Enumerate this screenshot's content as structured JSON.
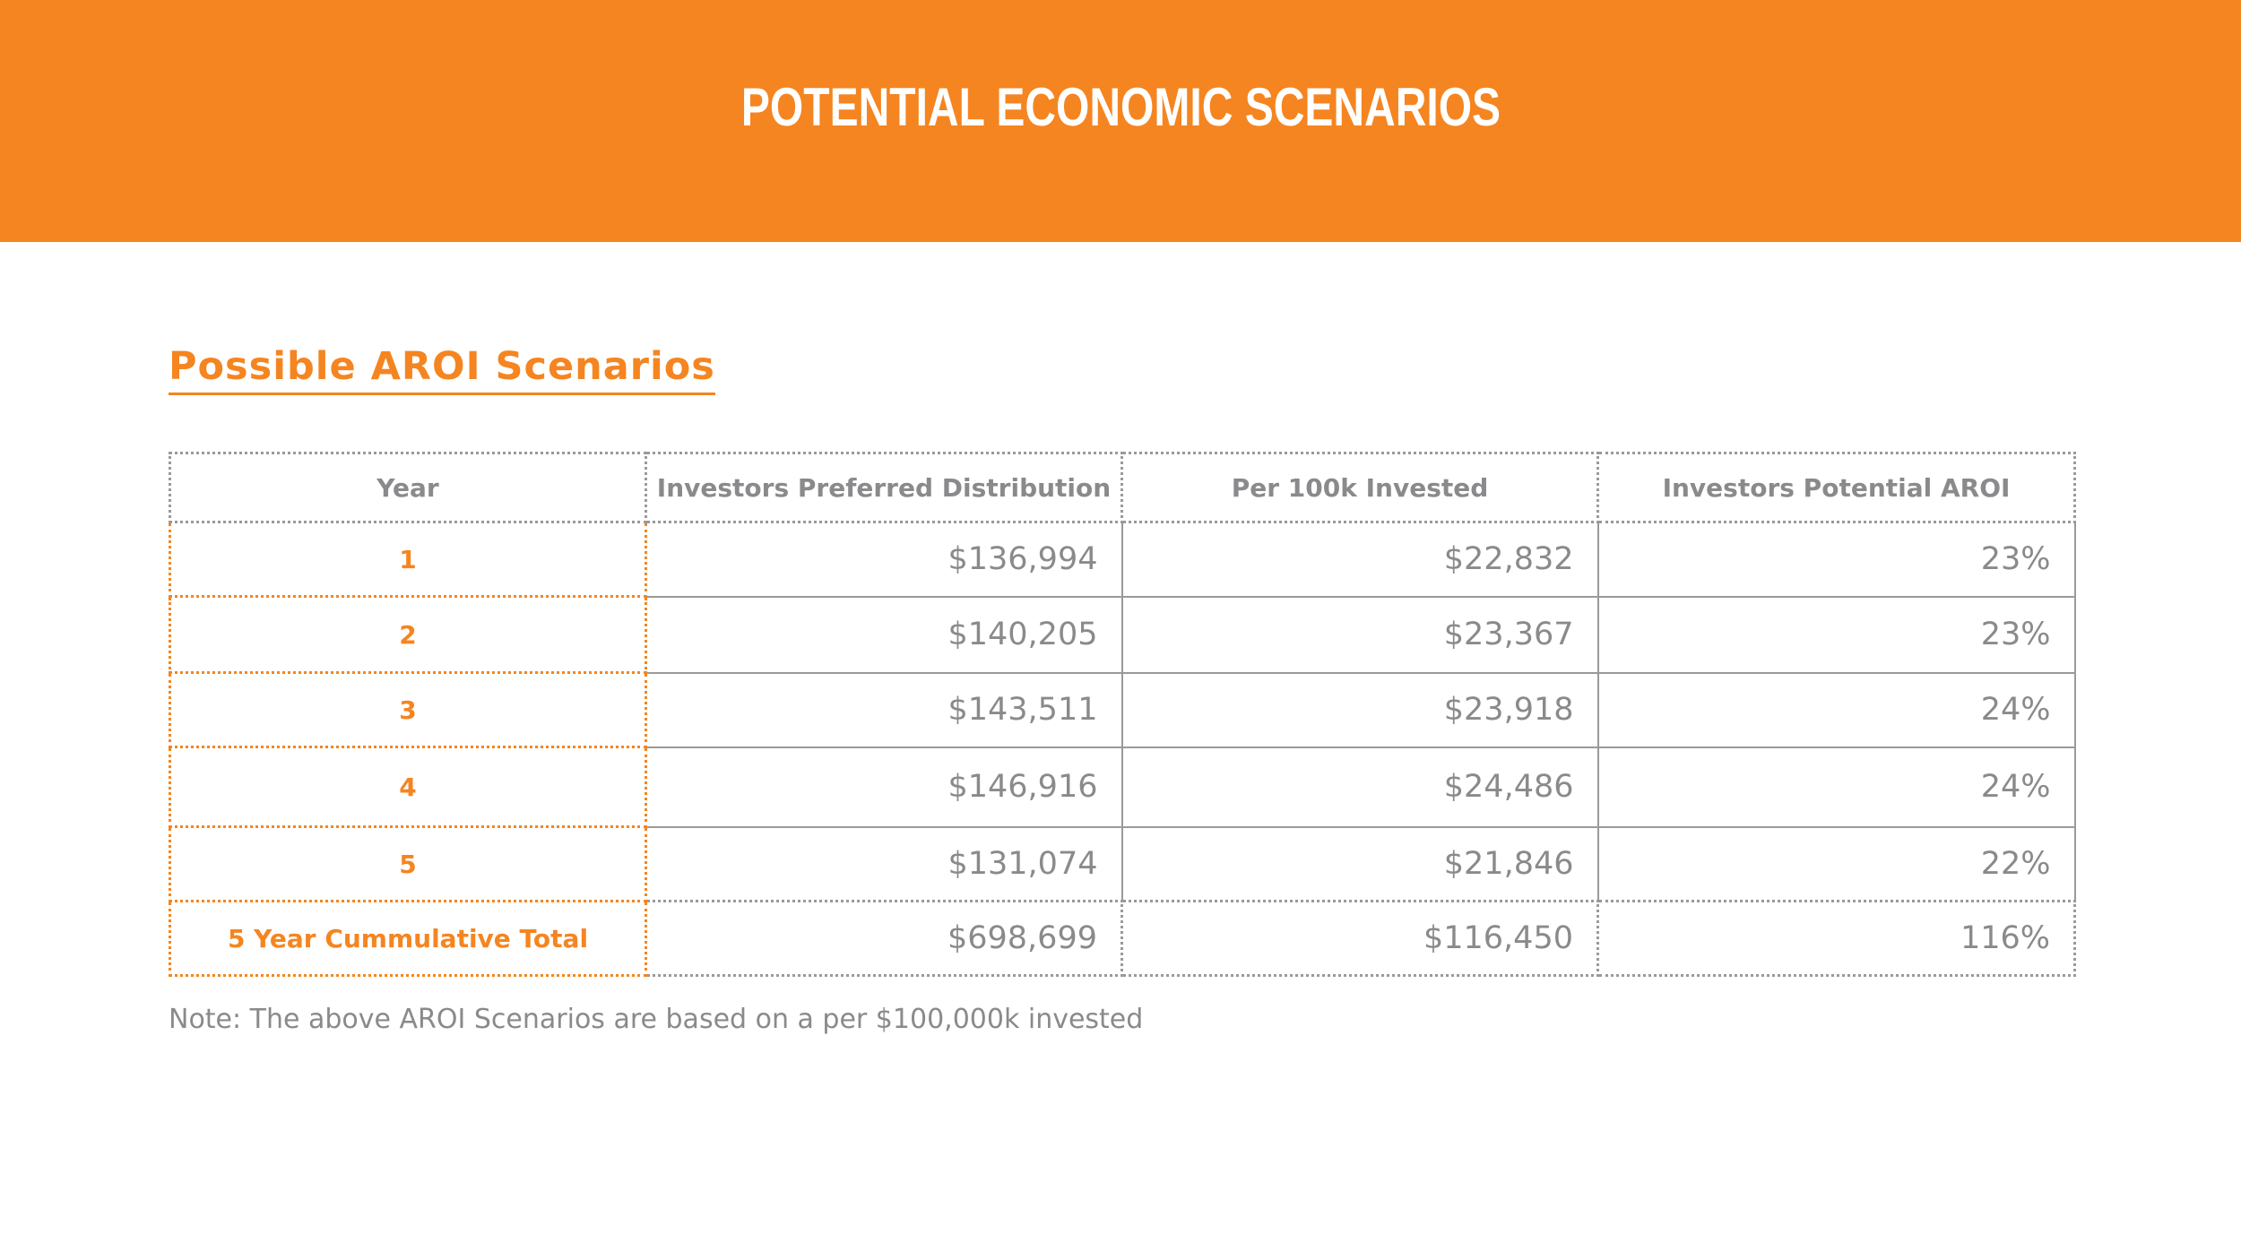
{
  "banner": {
    "title": "POTENTIAL ECONOMIC SCENARIOS",
    "color": "#f58520"
  },
  "section": {
    "title": "Possible AROI Scenarios"
  },
  "table": {
    "headers": [
      "Year",
      "Investors Preferred Distribution",
      "Per 100k Invested",
      "Investors Potential AROI"
    ],
    "rows": [
      {
        "year": "1",
        "distribution": "$136,994",
        "per100k": "$22,832",
        "aroi": "23%"
      },
      {
        "year": "2",
        "distribution": "$140,205",
        "per100k": "$23,367",
        "aroi": "23%"
      },
      {
        "year": "3",
        "distribution": "$143,511",
        "per100k": "$23,918",
        "aroi": "24%"
      },
      {
        "year": "4",
        "distribution": "$146,916",
        "per100k": "$24,486",
        "aroi": "24%"
      },
      {
        "year": "5",
        "distribution": "$131,074",
        "per100k": "$21,846",
        "aroi": "22%"
      }
    ],
    "total": {
      "label": "5 Year Cummulative Total",
      "distribution": "$698,699",
      "per100k": "$116,450",
      "aroi": "116%"
    }
  },
  "note": "Note: The above AROI Scenarios are based on a per $100,000k invested"
}
